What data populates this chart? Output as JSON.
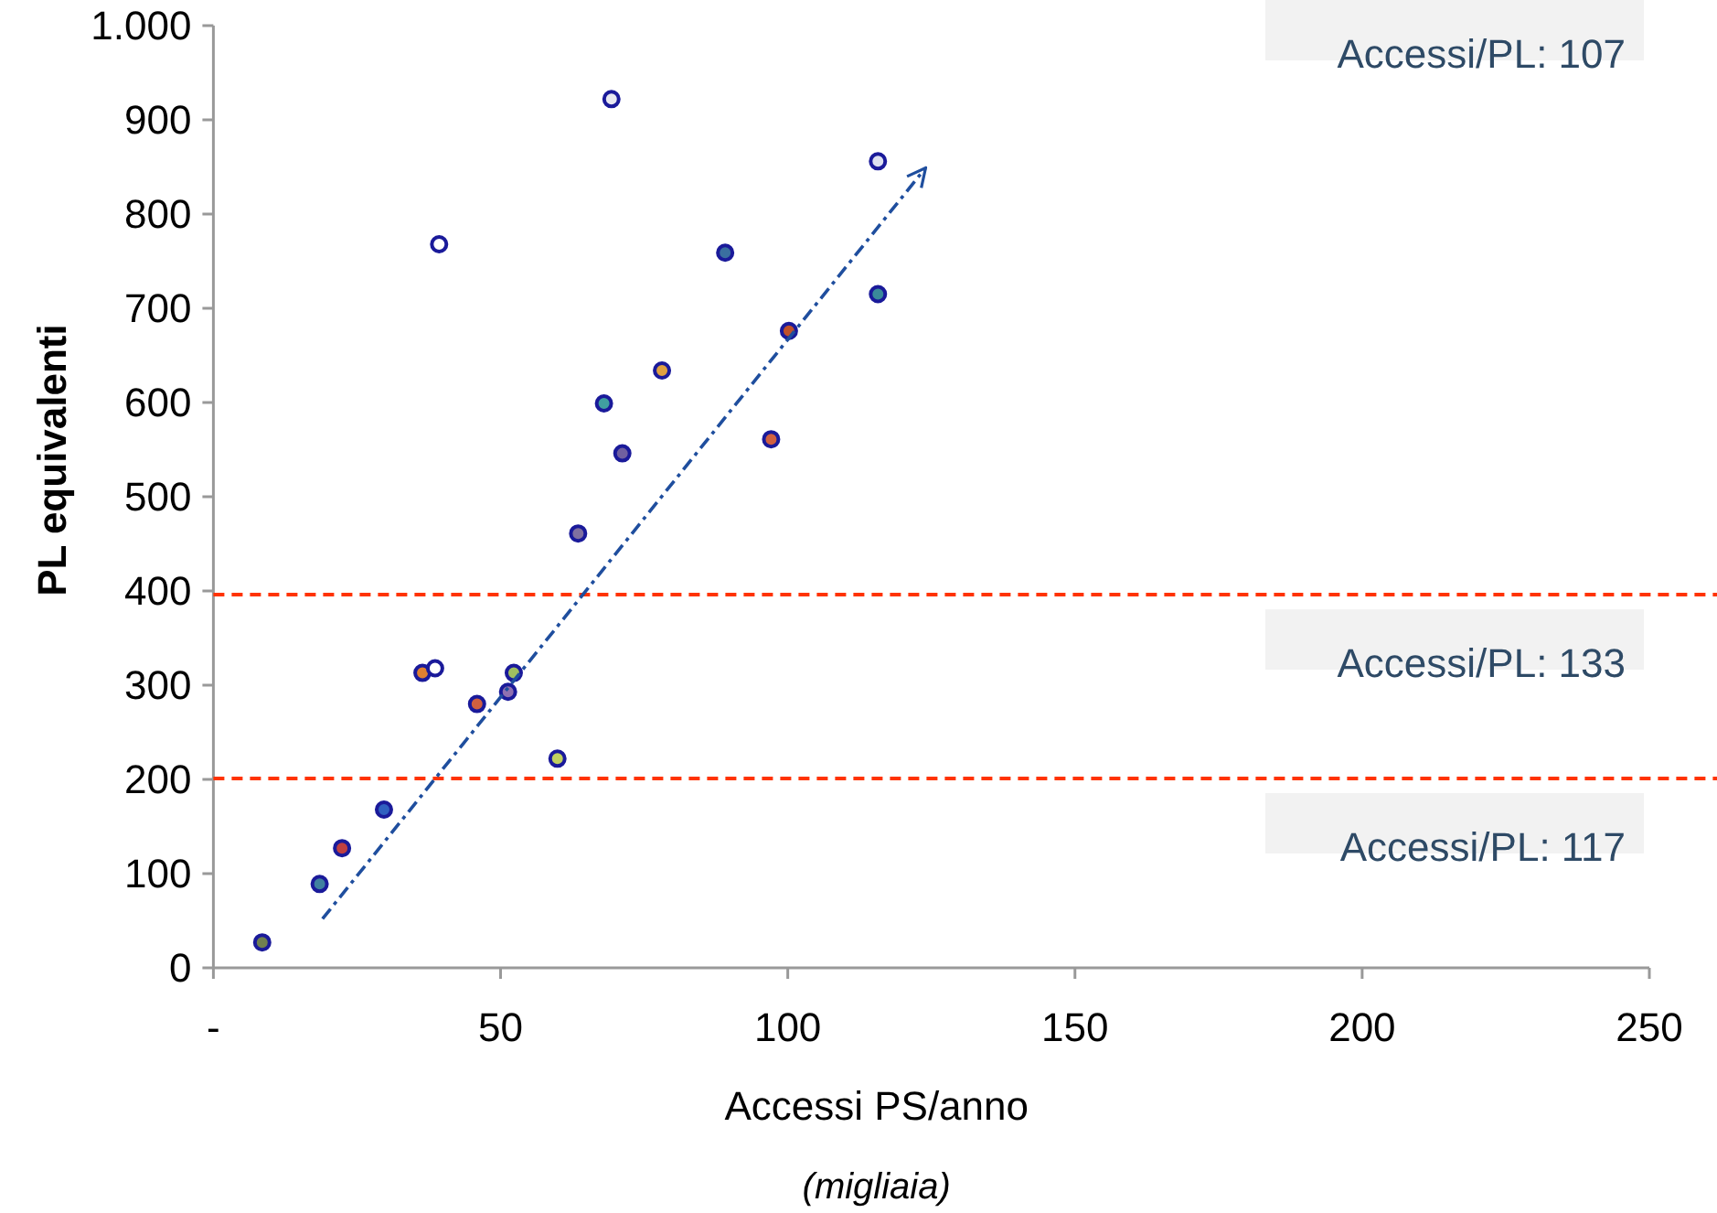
{
  "chart_data": {
    "type": "scatter",
    "xlabel": "Accessi PS/anno",
    "ylabel": "PL equivalenti",
    "xlim": [
      0,
      250
    ],
    "ylim": [
      0,
      1000
    ],
    "xticks": [
      {
        "value": 0,
        "label": "-"
      },
      50,
      100,
      150,
      200,
      250
    ],
    "yticks": [
      0,
      100,
      200,
      300,
      400,
      500,
      600,
      700,
      800,
      900,
      {
        "value": 1000,
        "label": "1.000"
      }
    ],
    "grid": false,
    "marker": "circle",
    "series": [
      {
        "color": "#1a1a9a",
        "x": [
          69.3,
          115.7,
          39.3,
          89.1,
          115.7,
          100.2,
          78.1,
          68.0,
          97.1,
          71.2,
          63.5,
          36.4,
          38.6,
          52.3,
          51.3,
          45.9,
          59.9,
          29.7,
          22.4,
          18.5,
          8.5
        ],
        "values": [
          922,
          856,
          768,
          759,
          715,
          676,
          634,
          599,
          561,
          546,
          461,
          313,
          318,
          313,
          293,
          280,
          222,
          168,
          127,
          89,
          27
        ],
        "colors": [
          "#e8e8f0",
          "#dde0f0",
          "#ffffff",
          "#3a6fa0",
          "#3a8a9a",
          "#c0502a",
          "#e0a040",
          "#40a0a0",
          "#d06040",
          "#7060a0",
          "#8070a0",
          "#e08030",
          "#ffffff",
          "#a0c060",
          "#9070b0",
          "#d06040",
          "#c0d060",
          "#3060c0",
          "#c04040",
          "#4080a0",
          "#708050"
        ]
      },
      {
        "type": "line",
        "color": "#1f4e9e",
        "line_style": "dashed",
        "marker": "none",
        "x": [
          19,
          124
        ],
        "values": [
          52,
          849
        ]
      }
    ],
    "ref_lines": [
      {
        "axis": "y",
        "value": 396,
        "color": "#ff3300",
        "line_style": "dashed"
      },
      {
        "axis": "y",
        "value": 201,
        "color": "#ff3300",
        "line_style": "dashed"
      }
    ],
    "annotations": [
      "Accessi/PL: 107",
      "Accessi/PL: 133",
      "Accessi/PL: 117",
      "(migliaia)"
    ]
  }
}
